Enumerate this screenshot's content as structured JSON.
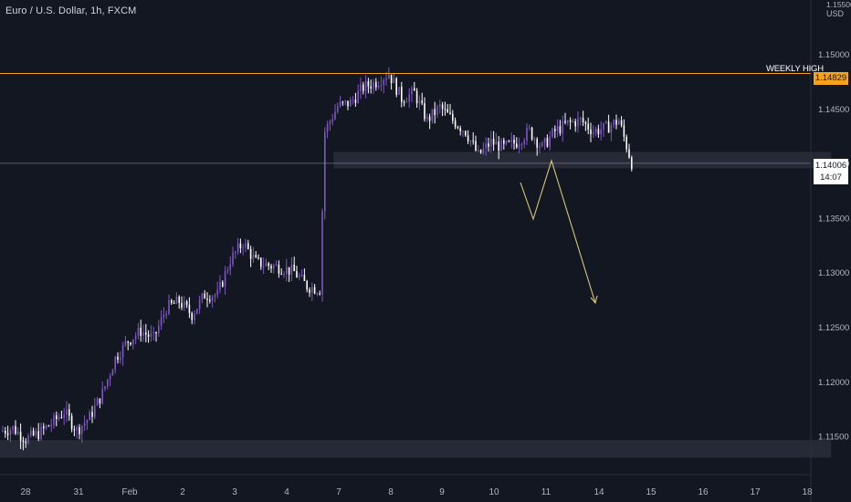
{
  "header": {
    "title": "Euro / U.S. Dollar, 1h, FXCM"
  },
  "price_axis": {
    "currency": "USD",
    "top_tick": "1.15500"
  },
  "annotations": {
    "weekly_high_label": "WEEKLY HIGH",
    "weekly_high_value": "1.14829",
    "current_price": "1.14006",
    "countdown": "14:07"
  },
  "colors": {
    "background": "#131722",
    "candle_up": "#7e57c2",
    "candle_down": "#ffffff",
    "weekly_high_line": "#f7a21b",
    "projection": "#d4c77a",
    "zone": "#2a2e39",
    "axis_text": "#b2b5be"
  },
  "chart_data": {
    "type": "candlestick",
    "title": "Euro / U.S. Dollar, 1h, FXCM",
    "ylim": [
      1.1125,
      1.1555
    ],
    "y_ticks": [
      "1.11500",
      "1.12000",
      "1.12500",
      "1.13000",
      "1.13500",
      "1.14000",
      "1.14500",
      "1.15000"
    ],
    "x_ticks": [
      "28",
      "31",
      "Feb",
      "2",
      "3",
      "4",
      "7",
      "8",
      "9",
      "10",
      "11",
      "14",
      "15",
      "16",
      "17",
      "18"
    ],
    "grid": false,
    "weekly_high": 1.14829,
    "last_price": 1.14006,
    "zones": [
      {
        "name": "support-zone",
        "from_index": 0,
        "to_index": 63,
        "low": 1.1131,
        "high": 1.1147
      },
      {
        "name": "resistance-zone",
        "from_index": 26,
        "to_index": 63,
        "low": 1.1396,
        "high": 1.1411
      }
    ],
    "projection": [
      {
        "index": 49,
        "price": 1.1385
      },
      {
        "index": 50.2,
        "price": 1.1352
      },
      {
        "index": 51.3,
        "price": 1.1406
      },
      {
        "index": 54.6,
        "price": 1.1276
      }
    ],
    "price_path": [
      1.1155,
      1.1158,
      1.1148,
      1.1153,
      1.1162,
      1.1173,
      1.1156,
      1.1168,
      1.119,
      1.1222,
      1.1238,
      1.1247,
      1.124,
      1.1268,
      1.1274,
      1.1262,
      1.128,
      1.128,
      1.1312,
      1.1328,
      1.131,
      1.1307,
      1.1305,
      1.1301,
      1.1288,
      1.1285,
      1.143,
      1.1453,
      1.1456,
      1.147,
      1.1475,
      1.1483,
      1.146,
      1.1465,
      1.144,
      1.1452,
      1.144,
      1.143,
      1.1408,
      1.142,
      1.1415,
      1.142,
      1.143,
      1.1415,
      1.143,
      1.1437,
      1.144,
      1.143,
      1.1433,
      1.144,
      1.1401
    ],
    "visible_indices": 63
  }
}
